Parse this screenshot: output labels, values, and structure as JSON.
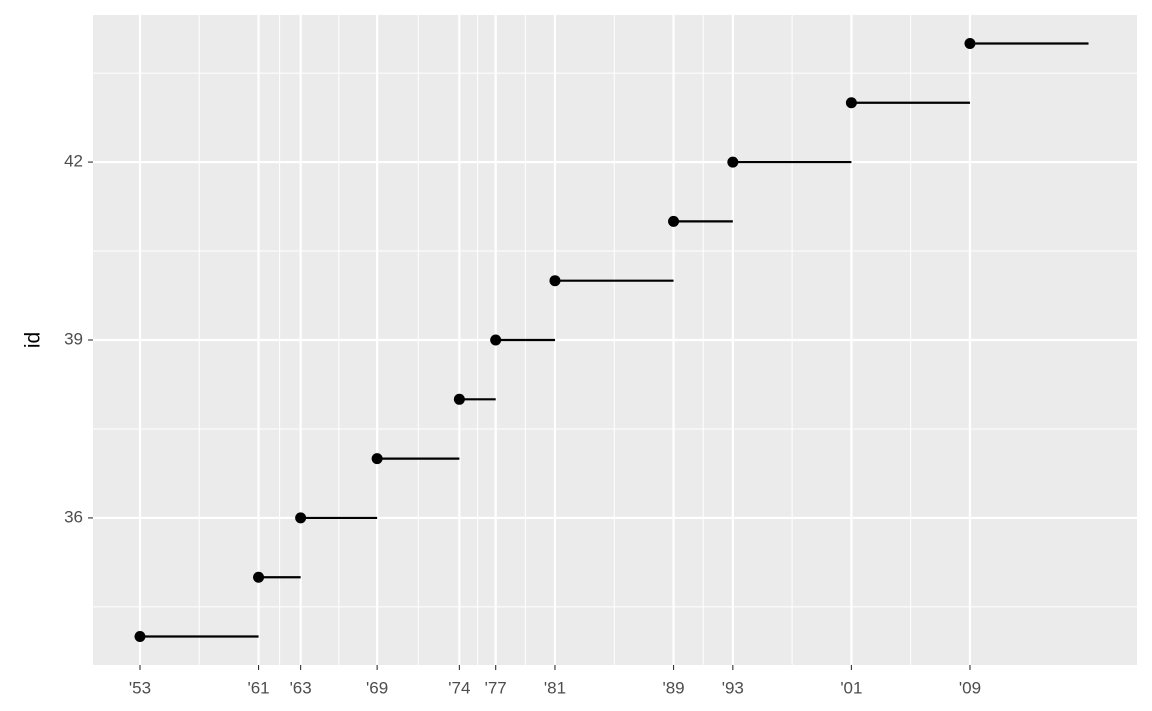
{
  "chart_data": {
    "type": "segment",
    "ylabel": "id",
    "values": [
      34,
      35,
      36,
      37,
      38,
      39,
      40,
      41,
      42,
      43,
      44
    ],
    "x": [
      1953.05,
      1961.05,
      1963.89,
      1969.05,
      1974.6,
      1977.05,
      1981.05,
      1989.05,
      1993.05,
      2001.05,
      2009.05
    ],
    "xend": [
      1961.05,
      1963.89,
      1969.05,
      1974.6,
      1977.05,
      1981.05,
      1989.05,
      1993.05,
      2001.05,
      2009.05,
      2017.05
    ],
    "color": "#000000",
    "background": "#ebebeb",
    "grid": true,
    "xlim": [
      1949.88,
      2020.32
    ],
    "ylim": [
      33.52,
      44.48
    ],
    "xticks": [
      {
        "value": 1953.05,
        "label": "'53"
      },
      {
        "value": 1961.05,
        "label": "'61"
      },
      {
        "value": 1963.89,
        "label": "'63"
      },
      {
        "value": 1969.05,
        "label": "'69"
      },
      {
        "value": 1974.6,
        "label": "'74"
      },
      {
        "value": 1977.05,
        "label": "'77"
      },
      {
        "value": 1981.05,
        "label": "'81"
      },
      {
        "value": 1989.05,
        "label": "'89"
      },
      {
        "value": 1993.05,
        "label": "'93"
      },
      {
        "value": 2001.05,
        "label": "'01"
      },
      {
        "value": 2009.05,
        "label": "'09"
      }
    ],
    "yticks": [
      36,
      39,
      42
    ]
  }
}
